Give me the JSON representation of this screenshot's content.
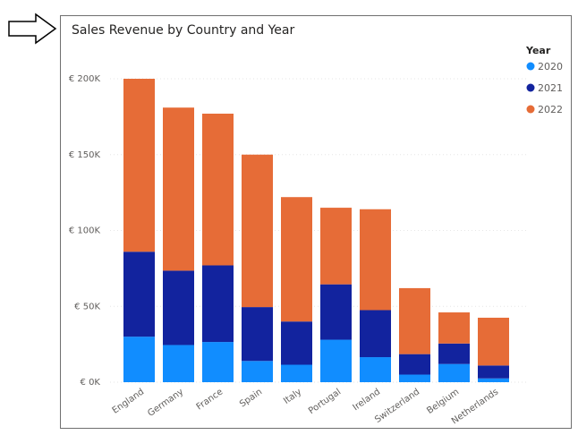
{
  "chart_data": {
    "type": "bar",
    "stacked": true,
    "title": "Sales Revenue by Country and Year",
    "xlabel": "",
    "ylabel": "",
    "ylim": [
      0,
      200000
    ],
    "y_ticks": [
      {
        "value": 0,
        "label": "€ 0K"
      },
      {
        "value": 50000,
        "label": "€ 50K"
      },
      {
        "value": 100000,
        "label": "€ 100K"
      },
      {
        "value": 150000,
        "label": "€ 150K"
      },
      {
        "value": 200000,
        "label": "€ 200K"
      }
    ],
    "categories": [
      "England",
      "Germany",
      "France",
      "Spain",
      "Italy",
      "Portugal",
      "Ireland",
      "Switzerland",
      "Belgium",
      "Netherlands"
    ],
    "legend": {
      "title": "Year",
      "position": "top-right"
    },
    "series": [
      {
        "name": "2020",
        "color": "#118dff",
        "values": [
          30000,
          24500,
          26500,
          14000,
          11500,
          28000,
          16500,
          5000,
          12000,
          2500
        ]
      },
      {
        "name": "2021",
        "color": "#12239e",
        "values": [
          56000,
          49000,
          50500,
          35500,
          28500,
          36500,
          31000,
          13500,
          13500,
          8500
        ]
      },
      {
        "name": "2022",
        "color": "#e66c37",
        "values": [
          114000,
          107500,
          100000,
          100500,
          82000,
          50500,
          66500,
          43500,
          20500,
          31500
        ]
      }
    ]
  }
}
